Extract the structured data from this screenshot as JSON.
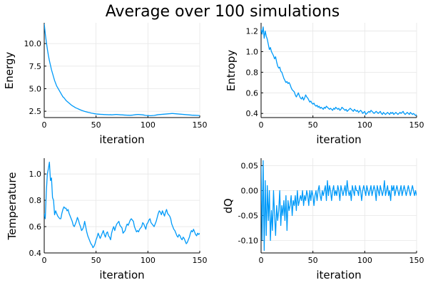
{
  "figure": {
    "title": "Average over 100 simulations",
    "background": "#ffffff",
    "line_color": "#009af9",
    "grid_color": "#e6e6e6"
  },
  "chart_data": [
    {
      "type": "line",
      "xlabel": "iteration",
      "ylabel": "Energy",
      "xlim": [
        0,
        150
      ],
      "ylim": [
        1.8,
        12.3
      ],
      "xticks": [
        0,
        50,
        100,
        150
      ],
      "yticks": [
        2.5,
        5.0,
        7.5,
        10.0
      ],
      "ytick_labels": [
        "2.5",
        "5.0",
        "7.5",
        "10.0"
      ],
      "grid": true,
      "series": [
        {
          "values": [
            12.2,
            11.1,
            10.2,
            9.4,
            8.7,
            8.1,
            7.6,
            7.1,
            6.7,
            6.3,
            5.9,
            5.6,
            5.3,
            5.1,
            4.9,
            4.7,
            4.5,
            4.3,
            4.1,
            4.0,
            3.85,
            3.7,
            3.6,
            3.5,
            3.4,
            3.3,
            3.2,
            3.12,
            3.05,
            2.98,
            2.9,
            2.85,
            2.8,
            2.75,
            2.7,
            2.65,
            2.6,
            2.56,
            2.52,
            2.48,
            2.45,
            2.42,
            2.39,
            2.36,
            2.34,
            2.3,
            2.28,
            2.26,
            2.24,
            2.22,
            2.2,
            2.19,
            2.18,
            2.17,
            2.16,
            2.15,
            2.15,
            2.14,
            2.13,
            2.13,
            2.12,
            2.12,
            2.11,
            2.11,
            2.12,
            2.1,
            2.11,
            2.12,
            2.13,
            2.14,
            2.14,
            2.13,
            2.12,
            2.11,
            2.1,
            2.1,
            2.09,
            2.08,
            2.07,
            2.07,
            2.06,
            2.06,
            2.05,
            2.05,
            2.06,
            2.07,
            2.09,
            2.1,
            2.12,
            2.13,
            2.14,
            2.14,
            2.13,
            2.12,
            2.11,
            2.1,
            2.08,
            2.06,
            2.04,
            2.03,
            2.02,
            2.02,
            2.01,
            2.01,
            2.02,
            2.03,
            2.04,
            2.06,
            2.08,
            2.1,
            2.12,
            2.13,
            2.14,
            2.15,
            2.16,
            2.17,
            2.18,
            2.19,
            2.2,
            2.21,
            2.22,
            2.23,
            2.24,
            2.25,
            2.25,
            2.24,
            2.23,
            2.22,
            2.21,
            2.2,
            2.19,
            2.18,
            2.17,
            2.16,
            2.15,
            2.14,
            2.13,
            2.12,
            2.11,
            2.1,
            2.09,
            2.08,
            2.07,
            2.06,
            2.06,
            2.05,
            2.05,
            2.04,
            2.04,
            2.03,
            2.03
          ]
        }
      ]
    },
    {
      "type": "line",
      "xlabel": "iteration",
      "ylabel": "Entropy",
      "xlim": [
        0,
        150
      ],
      "ylim": [
        0.36,
        1.28
      ],
      "xticks": [
        0,
        50,
        100,
        150
      ],
      "yticks": [
        0.4,
        0.6,
        0.8,
        1.0,
        1.2
      ],
      "ytick_labels": [
        "0.4",
        "0.6",
        "0.8",
        "1.0",
        "1.2"
      ],
      "grid": true,
      "series": [
        {
          "values": [
            1.22,
            1.17,
            1.24,
            1.13,
            1.2,
            1.15,
            1.12,
            1.07,
            1.02,
            1.04,
            1.0,
            0.98,
            0.96,
            0.93,
            0.95,
            0.9,
            0.86,
            0.84,
            0.85,
            0.81,
            0.8,
            0.77,
            0.74,
            0.72,
            0.7,
            0.71,
            0.69,
            0.7,
            0.68,
            0.65,
            0.63,
            0.62,
            0.61,
            0.58,
            0.56,
            0.58,
            0.6,
            0.57,
            0.55,
            0.54,
            0.56,
            0.53,
            0.55,
            0.58,
            0.56,
            0.55,
            0.53,
            0.51,
            0.52,
            0.5,
            0.49,
            0.5,
            0.48,
            0.47,
            0.48,
            0.46,
            0.47,
            0.45,
            0.46,
            0.45,
            0.44,
            0.46,
            0.45,
            0.47,
            0.46,
            0.45,
            0.44,
            0.45,
            0.44,
            0.43,
            0.45,
            0.44,
            0.46,
            0.45,
            0.44,
            0.45,
            0.43,
            0.44,
            0.46,
            0.45,
            0.44,
            0.43,
            0.44,
            0.42,
            0.43,
            0.44,
            0.45,
            0.44,
            0.43,
            0.42,
            0.44,
            0.43,
            0.42,
            0.43,
            0.41,
            0.42,
            0.43,
            0.42,
            0.4,
            0.41,
            0.42,
            0.39,
            0.4,
            0.41,
            0.42,
            0.41,
            0.43,
            0.42,
            0.41,
            0.4,
            0.41,
            0.42,
            0.41,
            0.4,
            0.41,
            0.42,
            0.4,
            0.39,
            0.41,
            0.4,
            0.39,
            0.4,
            0.41,
            0.4,
            0.39,
            0.41,
            0.4,
            0.41,
            0.39,
            0.4,
            0.41,
            0.4,
            0.39,
            0.4,
            0.41,
            0.4,
            0.41,
            0.42,
            0.4,
            0.39,
            0.4,
            0.41,
            0.4,
            0.39,
            0.41,
            0.4,
            0.39,
            0.4,
            0.39,
            0.38,
            0.39
          ]
        }
      ]
    },
    {
      "type": "line",
      "xlabel": "iteration",
      "ylabel": "Temperature",
      "xlim": [
        0,
        150
      ],
      "ylim": [
        0.4,
        1.12
      ],
      "xticks": [
        0,
        50,
        100,
        150
      ],
      "yticks": [
        0.4,
        0.6,
        0.8,
        1.0
      ],
      "ytick_labels": [
        "0.4",
        "0.6",
        "0.8",
        "1.0"
      ],
      "grid": true,
      "series": [
        {
          "values": [
            0.7,
            0.66,
            0.86,
            1.0,
            1.04,
            1.09,
            0.95,
            0.97,
            0.82,
            0.8,
            0.69,
            0.72,
            0.7,
            0.68,
            0.67,
            0.66,
            0.66,
            0.7,
            0.73,
            0.75,
            0.74,
            0.74,
            0.72,
            0.73,
            0.7,
            0.68,
            0.66,
            0.64,
            0.61,
            0.6,
            0.62,
            0.64,
            0.67,
            0.65,
            0.62,
            0.6,
            0.57,
            0.58,
            0.6,
            0.64,
            0.6,
            0.56,
            0.53,
            0.51,
            0.49,
            0.47,
            0.46,
            0.44,
            0.45,
            0.47,
            0.5,
            0.52,
            0.55,
            0.53,
            0.51,
            0.53,
            0.55,
            0.57,
            0.54,
            0.52,
            0.55,
            0.56,
            0.53,
            0.52,
            0.5,
            0.55,
            0.58,
            0.6,
            0.57,
            0.6,
            0.62,
            0.63,
            0.64,
            0.61,
            0.6,
            0.59,
            0.55,
            0.56,
            0.57,
            0.6,
            0.62,
            0.61,
            0.63,
            0.65,
            0.66,
            0.65,
            0.64,
            0.6,
            0.58,
            0.56,
            0.57,
            0.56,
            0.58,
            0.59,
            0.6,
            0.63,
            0.62,
            0.6,
            0.58,
            0.62,
            0.63,
            0.65,
            0.66,
            0.63,
            0.62,
            0.61,
            0.6,
            0.62,
            0.64,
            0.67,
            0.7,
            0.72,
            0.71,
            0.69,
            0.72,
            0.7,
            0.68,
            0.71,
            0.73,
            0.7,
            0.69,
            0.68,
            0.66,
            0.62,
            0.6,
            0.58,
            0.57,
            0.55,
            0.53,
            0.52,
            0.54,
            0.53,
            0.51,
            0.5,
            0.52,
            0.51,
            0.49,
            0.47,
            0.48,
            0.5,
            0.52,
            0.55,
            0.57,
            0.56,
            0.58,
            0.56,
            0.54,
            0.53,
            0.55,
            0.54,
            0.55
          ]
        }
      ]
    },
    {
      "type": "line",
      "xlabel": "iteration",
      "ylabel": "dQ",
      "xlim": [
        0,
        150
      ],
      "ylim": [
        -0.125,
        0.065
      ],
      "xticks": [
        0,
        50,
        100,
        150
      ],
      "yticks": [
        -0.1,
        -0.05,
        0.0,
        0.05
      ],
      "ytick_labels": [
        "-0.10",
        "-0.05",
        "0.00",
        "0.05"
      ],
      "grid": true,
      "series": [
        {
          "values": [
            0.05,
            -0.1,
            0.06,
            -0.12,
            0.02,
            -0.09,
            0.01,
            -0.06,
            0.0,
            -0.1,
            -0.04,
            -0.08,
            0.0,
            -0.05,
            -0.09,
            -0.03,
            -0.06,
            -0.04,
            0.0,
            -0.07,
            -0.03,
            -0.05,
            -0.02,
            -0.06,
            -0.01,
            -0.08,
            -0.02,
            -0.04,
            -0.03,
            -0.01,
            -0.05,
            -0.02,
            -0.03,
            -0.01,
            -0.04,
            0.0,
            -0.03,
            -0.02,
            -0.01,
            -0.02,
            0.0,
            -0.03,
            -0.01,
            -0.02,
            0.0,
            -0.01,
            -0.03,
            0.0,
            -0.02,
            0.0,
            -0.01,
            -0.03,
            -0.01,
            0.0,
            -0.02,
            0.0,
            0.01,
            -0.01,
            -0.02,
            0.0,
            -0.01,
            0.0,
            0.01,
            -0.02,
            0.02,
            -0.01,
            0.01,
            0.0,
            -0.02,
            0.0,
            0.01,
            -0.01,
            0.0,
            -0.01,
            0.01,
            0.0,
            -0.02,
            0.01,
            0.0,
            -0.01,
            0.0,
            0.01,
            -0.01,
            0.02,
            0.0,
            -0.01,
            0.0,
            -0.02,
            0.01,
            0.0,
            -0.01,
            0.01,
            0.0,
            0.0,
            -0.01,
            0.01,
            0.0,
            -0.02,
            0.0,
            0.01,
            0.0,
            -0.01,
            0.01,
            0.0,
            -0.01,
            0.0,
            0.01,
            -0.01,
            0.0,
            0.01,
            0.0,
            -0.02,
            0.01,
            0.0,
            -0.01,
            0.01,
            0.0,
            -0.01,
            0.0,
            0.02,
            -0.01,
            0.0,
            0.01,
            -0.01,
            0.0,
            -0.02,
            0.01,
            0.0,
            0.01,
            -0.01,
            0.0,
            0.01,
            0.0,
            -0.01,
            0.0,
            0.01,
            -0.01,
            0.0,
            0.01,
            0.0,
            -0.01,
            0.0,
            0.01,
            0.0,
            -0.01,
            0.0,
            0.01,
            0.0,
            -0.01,
            0.0,
            -0.01
          ]
        }
      ]
    }
  ]
}
